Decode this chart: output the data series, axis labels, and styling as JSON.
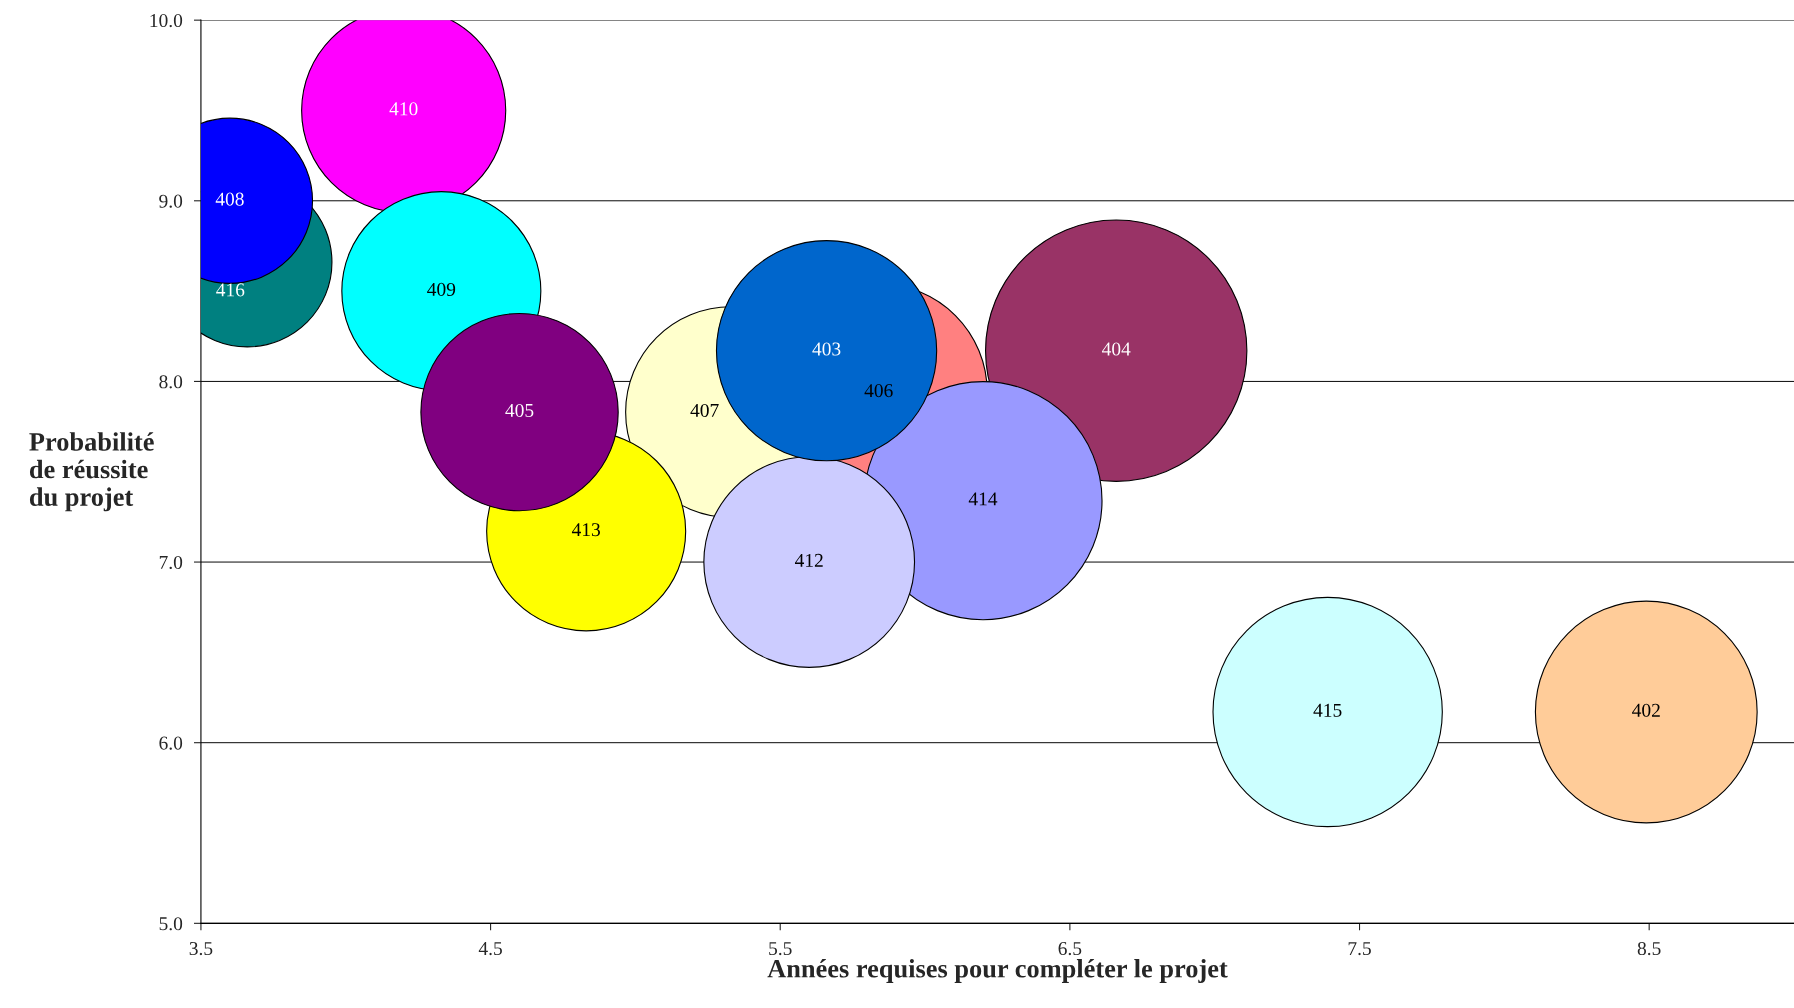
{
  "chart_data": {
    "type": "bubble",
    "xlabel": "Années requises pour compléter le projet",
    "ylabel": "Probabilité\nde réussite\ndu projet",
    "xlim": [
      3.5,
      9.0
    ],
    "xticks": [
      3.5,
      4.5,
      5.5,
      6.5,
      7.5,
      8.5
    ],
    "ylim": [
      5.0,
      10.0
    ],
    "yticks": [
      {
        "value": 5,
        "label": "5.0"
      },
      {
        "value": 6,
        "label": "6.0"
      },
      {
        "value": 7,
        "label": "7.0"
      },
      {
        "value": 8,
        "label": "8.0"
      },
      {
        "value": 9,
        "label": "9.0"
      },
      {
        "value": 10,
        "label": "10.0"
      }
    ],
    "grid": "y",
    "legend": false,
    "series": [
      {
        "name": "404",
        "color": "#993366",
        "x": [
          6.66
        ],
        "values": [
          8.17
        ],
        "sizes": [
          1.0
        ]
      },
      {
        "name": "406",
        "color": "#ff8080",
        "x": [
          5.84
        ],
        "values": [
          7.94
        ],
        "sizes": [
          0.69
        ]
      },
      {
        "name": "414",
        "color": "#9999ff",
        "x": [
          6.2
        ],
        "values": [
          7.34
        ],
        "sizes": [
          0.83
        ]
      },
      {
        "name": "407",
        "color": "#ffffcc",
        "x": [
          5.33
        ],
        "values": [
          7.83
        ],
        "sizes": [
          0.65
        ]
      },
      {
        "name": "412",
        "color": "#ccccff",
        "x": [
          5.6
        ],
        "values": [
          7.0
        ],
        "sizes": [
          0.65
        ]
      },
      {
        "name": "403",
        "color": "#0066cc",
        "x": [
          5.66
        ],
        "values": [
          8.17
        ],
        "sizes": [
          0.71
        ]
      },
      {
        "name": "410",
        "color": "#ff00ff",
        "x": [
          4.2
        ],
        "values": [
          9.5
        ],
        "sizes": [
          0.61
        ]
      },
      {
        "name": "409",
        "color": "#00ffff",
        "x": [
          4.33
        ],
        "values": [
          8.5
        ],
        "sizes": [
          0.58
        ]
      },
      {
        "name": "413",
        "color": "#ffff00",
        "x": [
          4.83
        ],
        "values": [
          7.17
        ],
        "sizes": [
          0.58
        ]
      },
      {
        "name": "405",
        "color": "#800080",
        "x": [
          4.6
        ],
        "values": [
          7.83
        ],
        "sizes": [
          0.57
        ]
      },
      {
        "name": "416",
        "color": "#008080",
        "x": [
          3.66
        ],
        "values": [
          8.66
        ],
        "sizes": [
          0.42
        ]
      },
      {
        "name": "408",
        "color": "#0000ff",
        "x": [
          3.6
        ],
        "values": [
          9.0
        ],
        "sizes": [
          0.4
        ]
      },
      {
        "name": "415",
        "color": "#ccffff",
        "x": [
          7.39
        ],
        "values": [
          6.17
        ],
        "sizes": [
          0.77
        ]
      },
      {
        "name": "402",
        "color": "#ffcc99",
        "x": [
          8.49
        ],
        "values": [
          6.17
        ],
        "sizes": [
          0.72
        ]
      }
    ]
  }
}
